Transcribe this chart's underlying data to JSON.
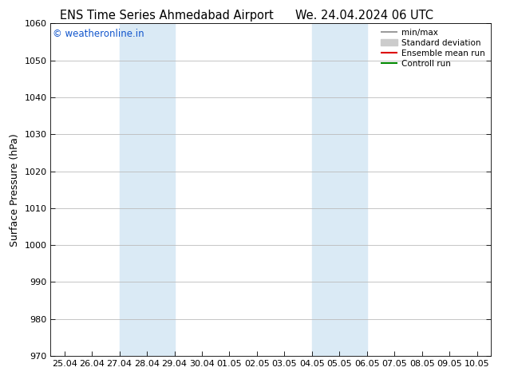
{
  "title_left": "ENS Time Series Ahmedabad Airport",
  "title_right": "We. 24.04.2024 06 UTC",
  "ylabel": "Surface Pressure (hPa)",
  "ylim": [
    970,
    1060
  ],
  "yticks": [
    970,
    980,
    990,
    1000,
    1010,
    1020,
    1030,
    1040,
    1050,
    1060
  ],
  "xtick_labels": [
    "25.04",
    "26.04",
    "27.04",
    "28.04",
    "29.04",
    "30.04",
    "01.05",
    "02.05",
    "03.05",
    "04.05",
    "05.05",
    "06.05",
    "07.05",
    "08.05",
    "09.05",
    "10.05"
  ],
  "xtick_positions": [
    0,
    1,
    2,
    3,
    4,
    5,
    6,
    7,
    8,
    9,
    10,
    11,
    12,
    13,
    14,
    15
  ],
  "shade_bands": [
    {
      "xmin": 2,
      "xmax": 4,
      "color": "#daeaf5"
    },
    {
      "xmin": 9,
      "xmax": 11,
      "color": "#daeaf5"
    }
  ],
  "watermark": "© weatheronline.in",
  "watermark_color": "#1155cc",
  "legend_items": [
    {
      "label": "min/max",
      "color": "#888888",
      "lw": 1.2,
      "style": "solid",
      "type": "line_with_caps"
    },
    {
      "label": "Standard deviation",
      "color": "#cccccc",
      "lw": 7,
      "style": "solid",
      "type": "thick_line"
    },
    {
      "label": "Ensemble mean run",
      "color": "#dd0000",
      "lw": 1.5,
      "style": "solid",
      "type": "line"
    },
    {
      "label": "Controll run",
      "color": "#008800",
      "lw": 1.5,
      "style": "solid",
      "type": "line"
    }
  ],
  "bg_color": "#ffffff",
  "plot_bg_color": "#ffffff",
  "grid_color": "#bbbbbb",
  "title_fontsize": 10.5,
  "tick_fontsize": 8,
  "ylabel_fontsize": 9
}
